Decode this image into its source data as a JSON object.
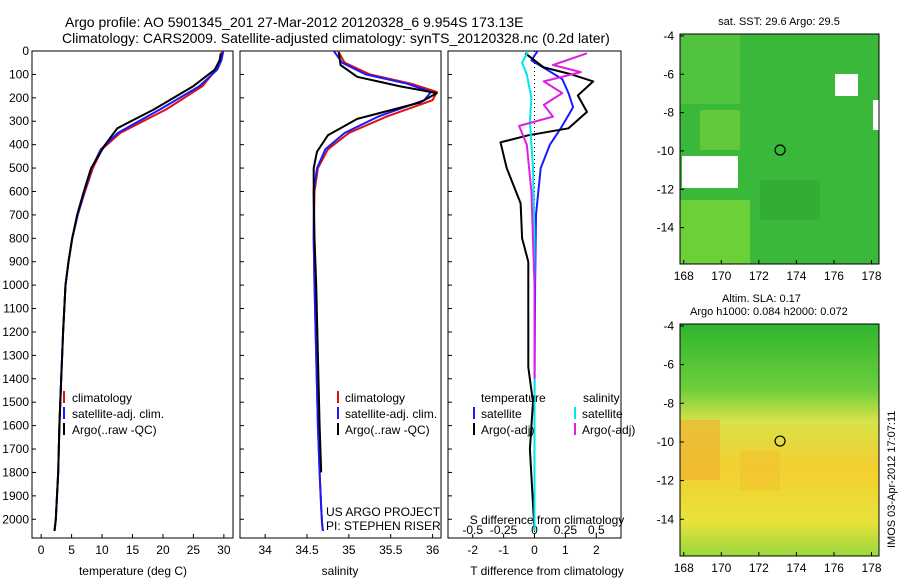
{
  "header": {
    "line1": "Argo profile: AO 5901345_201 27-Mar-2012 20120328_6 9.954S 173.13E",
    "line2": "Climatology: CARS2009. Satellite-adjusted climatology: synTS_20120328.nc (0.2d later)"
  },
  "colors": {
    "climatology": "#e01010",
    "satellite": "#1a1aff",
    "argo": "#000000",
    "sat_salinity": "#00e5ee",
    "argo_salinity": "#e020e0"
  },
  "depth_axis": {
    "ticks": [
      0,
      100,
      200,
      300,
      400,
      500,
      600,
      700,
      800,
      900,
      1000,
      1100,
      1200,
      1300,
      1400,
      1500,
      1600,
      1700,
      1800,
      1900,
      2000
    ],
    "range": [
      0,
      2080
    ]
  },
  "chart_data": [
    {
      "type": "line",
      "id": "temperature",
      "xlabel": "temperature (deg C)",
      "xlim": [
        -1.5,
        31.5
      ],
      "xticks": [
        0,
        5,
        10,
        15,
        20,
        25,
        30
      ],
      "legend": [
        "climatology",
        "satellite-adj. clim.",
        "Argo(..raw -QC)"
      ],
      "series": [
        {
          "name": "climatology",
          "color": "#e01010",
          "x": [
            29.7,
            29.4,
            28.7,
            26.5,
            20.5,
            13.0,
            10.0,
            8.5,
            7.2,
            6.0,
            5.1,
            4.5,
            4.0,
            3.6,
            3.3,
            3.0,
            2.8,
            2.6,
            2.4,
            2.2
          ],
          "y": [
            0,
            40,
            80,
            150,
            250,
            350,
            420,
            500,
            600,
            700,
            800,
            900,
            1000,
            1200,
            1400,
            1600,
            1800,
            1900,
            2000,
            2050
          ]
        },
        {
          "name": "satellite-adj. clim.",
          "color": "#1a1aff",
          "x": [
            29.9,
            29.6,
            28.9,
            26.0,
            19.5,
            12.6,
            9.8,
            8.3,
            7.1,
            6.0,
            5.1,
            4.5,
            4.0,
            3.6,
            3.3,
            3.0,
            2.8,
            2.6,
            2.4,
            2.2
          ],
          "y": [
            0,
            40,
            80,
            150,
            250,
            350,
            420,
            500,
            600,
            700,
            800,
            900,
            1000,
            1200,
            1400,
            1600,
            1800,
            1900,
            2000,
            2050
          ]
        },
        {
          "name": "Argo(..raw -QC)",
          "color": "#000000",
          "x": [
            29.5,
            29.3,
            28.5,
            25.0,
            18.5,
            12.5,
            10.5,
            8.2,
            7.0,
            5.9,
            5.1,
            4.5,
            4.0,
            3.6,
            3.3,
            3.0,
            2.8,
            2.6,
            2.4,
            2.2
          ],
          "y": [
            10,
            40,
            80,
            150,
            250,
            330,
            400,
            500,
            600,
            700,
            800,
            900,
            1000,
            1200,
            1400,
            1600,
            1800,
            1900,
            2000,
            2050
          ]
        }
      ]
    },
    {
      "type": "line",
      "id": "salinity",
      "xlabel": "salinity",
      "xlim": [
        33.7,
        36.1
      ],
      "xticks": [
        34,
        34.5,
        35,
        35.5,
        36
      ],
      "xticklabels": [
        "34",
        "34.5",
        "35",
        "35.5",
        "36"
      ],
      "legend": [
        "climatology",
        "satellite-adj. clim.",
        "Argo(..raw -QC)"
      ],
      "annotation": [
        "US ARGO PROJECT",
        "PI: STEPHEN RISER"
      ],
      "series": [
        {
          "name": "climatology",
          "color": "#e01010",
          "x": [
            34.87,
            34.95,
            35.25,
            35.75,
            36.05,
            36.0,
            35.45,
            35.0,
            34.75,
            34.63,
            34.59,
            34.58,
            34.59,
            34.61,
            34.63,
            34.65,
            34.67,
            34.68,
            34.69
          ],
          "y": [
            0,
            50,
            100,
            140,
            175,
            210,
            280,
            350,
            420,
            500,
            600,
            800,
            1000,
            1300,
            1600,
            1800,
            1950,
            2020,
            2050
          ]
        },
        {
          "name": "satellite-adj. clim.",
          "color": "#1a1aff",
          "x": [
            34.82,
            34.92,
            35.2,
            35.7,
            35.98,
            35.9,
            35.35,
            34.95,
            34.72,
            34.62,
            34.58,
            34.58,
            34.59,
            34.61,
            34.63,
            34.65,
            34.67,
            34.68,
            34.69
          ],
          "y": [
            0,
            50,
            100,
            140,
            175,
            210,
            280,
            350,
            420,
            500,
            600,
            800,
            1000,
            1300,
            1600,
            1800,
            1950,
            2020,
            2050
          ]
        },
        {
          "name": "Argo(..raw -QC)",
          "color": "#000000",
          "x": [
            34.88,
            34.9,
            35.1,
            35.6,
            36.05,
            35.85,
            35.1,
            34.75,
            34.62,
            34.58,
            34.58,
            34.59,
            34.61,
            34.63,
            34.65,
            34.67
          ],
          "y": [
            5,
            60,
            110,
            150,
            180,
            220,
            290,
            360,
            430,
            500,
            600,
            800,
            1000,
            1300,
            1600,
            1800
          ]
        }
      ]
    },
    {
      "type": "line",
      "id": "difference",
      "xlabel": "T difference from climatology",
      "xlabel_top": "S difference from climatology",
      "xlim": [
        -2.8,
        2.8
      ],
      "xticks": [
        -2,
        -1,
        0,
        1,
        2
      ],
      "top_ticks": [
        -0.5,
        -0.25,
        0,
        0.25,
        0.5
      ],
      "top_ticklabels": [
        "-0.5",
        "-0.25",
        "0",
        "0.25",
        "0.5"
      ],
      "legend_titles": [
        "temperature",
        "salinity"
      ],
      "legend": [
        "satellite",
        "Argo(-adj)",
        "satellite",
        "Argo(-adj)"
      ],
      "series": [
        {
          "name": "temperature satellite",
          "color": "#1a1aff",
          "x": [
            0.1,
            -0.1,
            0.4,
            0.9,
            1.1,
            1.25,
            0.85,
            0.5,
            0.2,
            0.05,
            0.02,
            0,
            0
          ],
          "y": [
            0,
            40,
            80,
            120,
            180,
            240,
            330,
            400,
            500,
            700,
            1000,
            1500,
            2050
          ]
        },
        {
          "name": "temperature Argo(-adj)",
          "color": "#000000",
          "x": [
            -0.3,
            0.3,
            1.2,
            1.9,
            1.4,
            1.7,
            1.1,
            -0.2,
            -1.1,
            -0.9,
            -0.45,
            -0.4,
            -0.2,
            -0.2,
            -0.05,
            -0.15,
            0
          ],
          "y": [
            10,
            70,
            100,
            130,
            190,
            260,
            330,
            360,
            390,
            500,
            650,
            800,
            900,
            1350,
            1500,
            1700,
            2050
          ]
        },
        {
          "name": "salinity satellite",
          "color": "#00e5ee",
          "x": [
            -0.2,
            -0.4,
            -0.25,
            -0.1,
            -0.15,
            -0.05,
            0,
            0,
            0
          ],
          "y": [
            0,
            50,
            100,
            200,
            300,
            500,
            800,
            1200,
            2050
          ]
        },
        {
          "name": "salinity Argo(-adj)",
          "color": "#e020e0",
          "x": [
            1.7,
            0.6,
            1.5,
            0.3,
            0.9,
            0.3,
            0.6,
            -0.5,
            -0.25,
            -0.1,
            0,
            0
          ],
          "y": [
            10,
            60,
            90,
            130,
            180,
            230,
            280,
            320,
            400,
            600,
            1000,
            1400
          ]
        }
      ]
    }
  ],
  "maps": [
    {
      "id": "sst-map",
      "title": "sat. SST: 29.6  Argo: 29.5",
      "xticks": [
        168,
        170,
        172,
        174,
        176,
        178
      ],
      "yticks": [
        -4,
        -6,
        -8,
        -10,
        -12,
        -14
      ],
      "xlim": [
        167.8,
        178.4
      ],
      "ylim": [
        -15.9,
        -3.9
      ],
      "marker": {
        "lon": 173.13,
        "lat": -9.954
      }
    },
    {
      "id": "sla-map",
      "title_line1": "Altim. SLA: 0.17",
      "title_line2": "Argo h1000: 0.084 h2000: 0.072",
      "xticks": [
        168,
        170,
        172,
        174,
        176,
        178
      ],
      "yticks": [
        -4,
        -6,
        -8,
        -10,
        -12,
        -14
      ],
      "xlim": [
        167.8,
        178.4
      ],
      "ylim": [
        -15.9,
        -3.9
      ],
      "marker": {
        "lon": 173.13,
        "lat": -9.954
      }
    }
  ],
  "footer": {
    "stamp": "IMOS 03-Apr-2012 17:07:11"
  }
}
